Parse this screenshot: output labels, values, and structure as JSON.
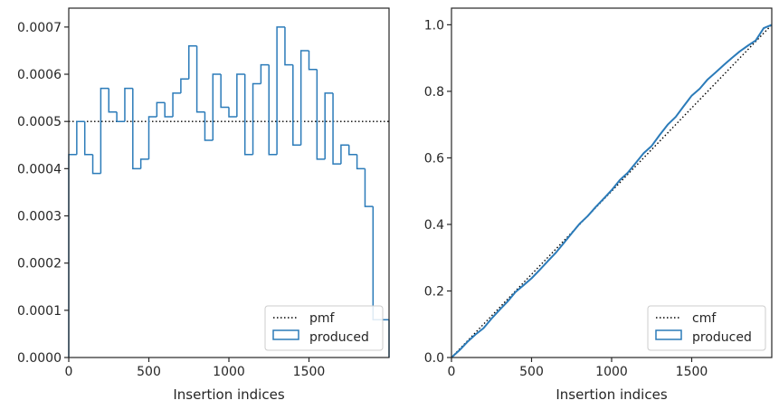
{
  "chart_data": [
    {
      "type": "step",
      "xlabel": "Insertion indices",
      "ylabel": "",
      "xlim": [
        0,
        2000
      ],
      "ylim": [
        0,
        0.00074
      ],
      "xticks": [
        0,
        500,
        1000,
        1500
      ],
      "xtick_labels": [
        "0",
        "500",
        "1000",
        "1500"
      ],
      "yticks": [
        0,
        0.0001,
        0.0002,
        0.0003,
        0.0004,
        0.0005,
        0.0006,
        0.0007
      ],
      "ytick_labels": [
        "0.0000",
        "0.0001",
        "0.0002",
        "0.0003",
        "0.0004",
        "0.0005",
        "0.0006",
        "0.0007"
      ],
      "legend_placement": "lower right",
      "reference_line": {
        "name": "pmf",
        "style": "dotted",
        "color": "#000000",
        "y": 0.0005
      },
      "histogram": {
        "name": "produced",
        "color": "#2b7bb9",
        "bin_width": 50,
        "bin_starts": [
          0,
          50,
          100,
          150,
          200,
          250,
          300,
          350,
          400,
          450,
          500,
          550,
          600,
          650,
          700,
          750,
          800,
          850,
          900,
          950,
          1000,
          1050,
          1100,
          1150,
          1200,
          1250,
          1300,
          1350,
          1400,
          1450,
          1500,
          1550,
          1600,
          1650,
          1700,
          1750,
          1800,
          1850,
          1900,
          1950
        ],
        "values": [
          0.00043,
          0.0005,
          0.00043,
          0.00039,
          0.00057,
          0.00052,
          0.0005,
          0.00057,
          0.0004,
          0.00042,
          0.00051,
          0.00054,
          0.00051,
          0.00056,
          0.00059,
          0.00066,
          0.00052,
          0.00046,
          0.0006,
          0.00053,
          0.00051,
          0.0006,
          0.00043,
          0.00058,
          0.00062,
          0.00043,
          0.0007,
          0.00062,
          0.00045,
          0.00065,
          0.00061,
          0.00042,
          0.00056,
          0.00041,
          0.00045,
          0.00043,
          0.0004,
          0.00032,
          8e-05,
          8e-05
        ]
      }
    },
    {
      "type": "line",
      "xlabel": "Insertion indices",
      "ylabel": "",
      "xlim": [
        0,
        2000
      ],
      "ylim": [
        0,
        1.05
      ],
      "xticks": [
        0,
        500,
        1000,
        1500
      ],
      "xtick_labels": [
        "0",
        "500",
        "1000",
        "1500"
      ],
      "yticks": [
        0,
        0.2,
        0.4,
        0.6,
        0.8,
        1.0
      ],
      "ytick_labels": [
        "0.0",
        "0.2",
        "0.4",
        "0.6",
        "0.8",
        "1.0"
      ],
      "legend_placement": "lower right",
      "reference_line": {
        "name": "cmf",
        "style": "dotted",
        "color": "#000000",
        "x": [
          0,
          2000
        ],
        "y": [
          0,
          1.0
        ]
      },
      "series": [
        {
          "name": "produced",
          "color": "#2b7bb9",
          "x": [
            0,
            50,
            100,
            150,
            200,
            250,
            300,
            350,
            400,
            450,
            500,
            550,
            600,
            650,
            700,
            750,
            800,
            850,
            900,
            950,
            1000,
            1050,
            1100,
            1150,
            1200,
            1250,
            1300,
            1350,
            1400,
            1450,
            1500,
            1550,
            1600,
            1650,
            1700,
            1750,
            1800,
            1850,
            1900,
            1950,
            2000
          ],
          "y": [
            0,
            0.022,
            0.047,
            0.069,
            0.088,
            0.117,
            0.143,
            0.168,
            0.197,
            0.217,
            0.238,
            0.263,
            0.289,
            0.314,
            0.343,
            0.373,
            0.402,
            0.425,
            0.452,
            0.477,
            0.503,
            0.533,
            0.555,
            0.584,
            0.614,
            0.636,
            0.669,
            0.7,
            0.723,
            0.755,
            0.787,
            0.808,
            0.836,
            0.857,
            0.879,
            0.9,
            0.92,
            0.937,
            0.953,
            0.99,
            1.0
          ]
        }
      ]
    }
  ]
}
